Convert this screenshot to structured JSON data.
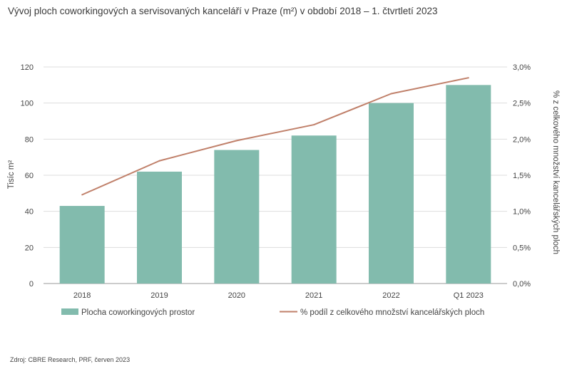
{
  "title": "Vývoj ploch coworkingových a servisovaných kanceláří v Praze (m²) v období 2018 – 1. čtvrtletí 2023",
  "source": "Zdroj: CBRE Research, PRF, červen 2023",
  "colors": {
    "bar": "#82bbad",
    "line": "#c0806a",
    "grid": "#dddddd",
    "axis": "#999999"
  },
  "chart_data": {
    "type": "bar",
    "categories": [
      "2018",
      "2019",
      "2020",
      "2021",
      "2022",
      "Q1 2023"
    ],
    "series": [
      {
        "name": "Plocha coworkingových prostor",
        "type": "bar",
        "axis": "left",
        "values": [
          43,
          62,
          74,
          82,
          100,
          110
        ]
      },
      {
        "name": "% podíl z celkového množství kancelářských ploch",
        "type": "line",
        "axis": "right",
        "values": [
          1.23,
          1.7,
          1.98,
          2.2,
          2.63,
          2.85
        ]
      }
    ],
    "ylabel": "Tisíc m²",
    "y2label": "% z celkového množství kancelářských ploch",
    "ylim": [
      0,
      120
    ],
    "y2lim": [
      0,
      3.0
    ],
    "yticks": [
      "0",
      "20",
      "40",
      "60",
      "80",
      "100",
      "120"
    ],
    "y2ticks": [
      "0,0%",
      "0,5%",
      "1,0%",
      "1,5%",
      "2,0%",
      "2,5%",
      "3,0%"
    ],
    "grid": true,
    "legend": "bottom"
  }
}
